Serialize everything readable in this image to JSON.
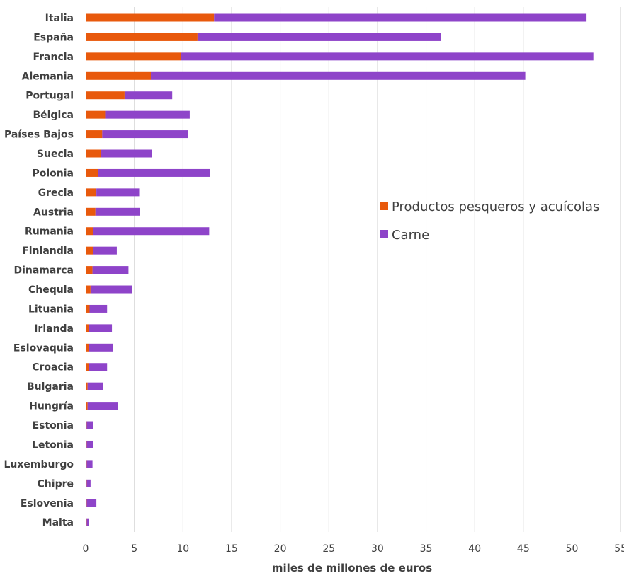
{
  "chart_data": {
    "type": "bar",
    "orientation": "horizontal",
    "stacked": true,
    "categories": [
      "Italia",
      "España",
      "Francia",
      "Alemania",
      "Portugal",
      "Bélgica",
      "Países Bajos",
      "Suecia",
      "Polonia",
      "Grecia",
      "Austria",
      "Rumania",
      "Finlandia",
      "Dinamarca",
      "Chequia",
      "Lituania",
      "Irlanda",
      "Eslovaquia",
      "Croacia",
      "Bulgaria",
      "Hungría",
      "Estonia",
      "Letonia",
      "Luxemburgo",
      "Chipre",
      "Eslovenia",
      "Malta"
    ],
    "series": [
      {
        "name": "Productos pesqueros y acuícolas",
        "color": "#e8590c",
        "values": [
          13.2,
          11.5,
          9.8,
          6.7,
          4.0,
          2.0,
          1.7,
          1.6,
          1.3,
          1.1,
          1.0,
          0.8,
          0.8,
          0.7,
          0.5,
          0.4,
          0.3,
          0.3,
          0.3,
          0.2,
          0.2,
          0.1,
          0.1,
          0.1,
          0.1,
          0.1,
          0.1
        ]
      },
      {
        "name": "Carne",
        "color": "#8e44c9",
        "values": [
          38.3,
          25.0,
          42.4,
          38.5,
          4.9,
          8.7,
          8.8,
          5.2,
          11.5,
          4.4,
          4.6,
          11.9,
          2.4,
          3.7,
          4.3,
          1.8,
          2.4,
          2.5,
          1.9,
          1.6,
          3.1,
          0.7,
          0.7,
          0.6,
          0.4,
          1.0,
          0.2
        ]
      }
    ],
    "xlabel": "miles de millones de euros",
    "xlim": [
      0,
      55
    ],
    "xticks": [
      0,
      5,
      10,
      15,
      20,
      25,
      30,
      35,
      40,
      45,
      50,
      55
    ],
    "grid": "vertical",
    "legend": "right"
  }
}
